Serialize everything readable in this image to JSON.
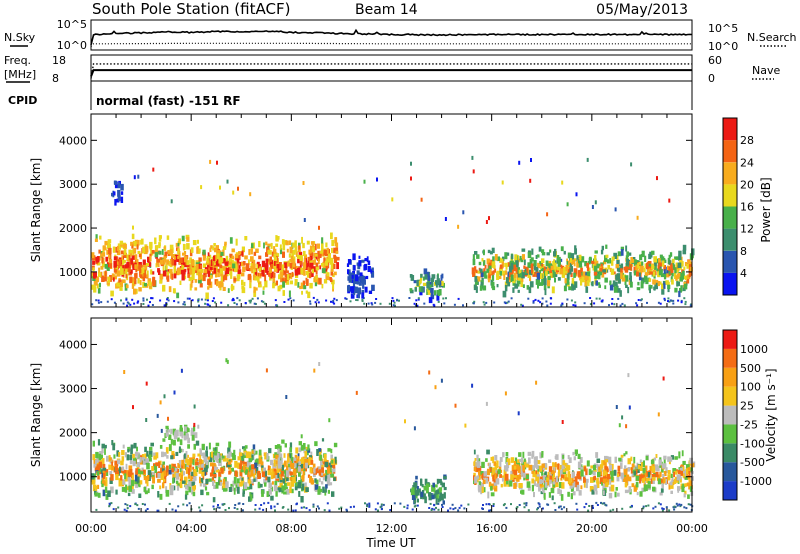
{
  "header": {
    "station": "South Pole Station (fitACF)",
    "beam": "Beam 14",
    "date": "05/May/2013"
  },
  "labels": {
    "nsky": "N.Sky",
    "nsearch": "N.Search",
    "freq_line1": "Freq.",
    "freq_line2": "[MHz]",
    "cpid": "CPID",
    "nave": "Nave",
    "mode": "normal (fast) -151 RF"
  },
  "chart_data": [
    {
      "type": "line",
      "panel": "noise",
      "left_axis": {
        "ticks": [
          "10^5",
          "10^0"
        ],
        "ylim_log10": [
          0,
          5
        ]
      },
      "right_axis": {
        "ticks": [
          "10^5",
          "10^0"
        ]
      },
      "series": [
        {
          "name": "N.Sky",
          "style": "solid",
          "x_hours": [
            0,
            0.1,
            1,
            2,
            3,
            4,
            5,
            6,
            7,
            8,
            9,
            10,
            12,
            14,
            16,
            18,
            20,
            22,
            24
          ],
          "log10_value": [
            0.5,
            2.6,
            2.8,
            2.9,
            3.1,
            3.0,
            3.2,
            3.1,
            3.3,
            3.0,
            2.9,
            2.8,
            2.6,
            2.5,
            2.6,
            2.6,
            2.6,
            2.6,
            2.6
          ]
        },
        {
          "name": "N.Search",
          "style": "dotted",
          "x_hours": [
            0,
            0.1,
            4,
            8,
            12,
            16,
            20,
            24
          ],
          "log10_value": [
            0.3,
            0.8,
            0.9,
            0.9,
            0.8,
            0.8,
            0.8,
            0.8
          ]
        }
      ]
    },
    {
      "type": "line",
      "panel": "frequency-nave",
      "left_axis": {
        "ticks": [
          "18",
          "8"
        ],
        "ylim": [
          8,
          18
        ]
      },
      "right_axis": {
        "ticks": [
          "60",
          "0"
        ],
        "ylim": [
          0,
          60
        ]
      },
      "series": [
        {
          "name": "Freq.",
          "style": "solid",
          "x_hours": [
            0,
            0.1,
            24
          ],
          "value": [
            9.5,
            12.3,
            12.3
          ]
        },
        {
          "name": "Nave",
          "style": "dotted",
          "x_hours": [
            0,
            0.1,
            24
          ],
          "value": [
            4,
            42,
            42
          ]
        }
      ]
    },
    {
      "type": "heatmap",
      "panel": "power",
      "ylabel": "Slant Range [km]",
      "yticks": [
        "1000",
        "2000",
        "3000",
        "4000"
      ],
      "ylim": [
        200,
        4600
      ],
      "xlim": [
        0,
        24
      ],
      "colorbar": {
        "label": "Power [dB]",
        "ticks": [
          "4",
          "8",
          "12",
          "16",
          "20",
          "24",
          "28"
        ],
        "colors": [
          "#0a14f0",
          "#2a56b0",
          "#3c8e6e",
          "#48b04a",
          "#e8d81e",
          "#f8ac1e",
          "#f46414",
          "#ec1a14"
        ]
      },
      "regions": [
        {
          "t0": 0.0,
          "t1": 9.8,
          "r0": 500,
          "r1": 1900,
          "level": [
            3,
            7
          ]
        },
        {
          "t0": 0.8,
          "t1": 1.2,
          "r0": 2600,
          "r1": 3200,
          "level": [
            0,
            1
          ]
        },
        {
          "t0": 10.2,
          "t1": 11.2,
          "r0": 300,
          "r1": 1500,
          "level": [
            0,
            1
          ]
        },
        {
          "t0": 12.7,
          "t1": 14.1,
          "r0": 400,
          "r1": 1100,
          "level": [
            0,
            4
          ]
        },
        {
          "t0": 15.2,
          "t1": 24.0,
          "r0": 550,
          "r1": 1650,
          "level": [
            1,
            6
          ]
        }
      ]
    },
    {
      "type": "heatmap",
      "panel": "velocity",
      "ylabel": "Slant Range [km]",
      "xlabel": "Time UT",
      "xticks": [
        "00:00",
        "04:00",
        "08:00",
        "12:00",
        "16:00",
        "20:00",
        "00:00"
      ],
      "yticks": [
        "1000",
        "2000",
        "3000",
        "4000"
      ],
      "ylim": [
        200,
        4600
      ],
      "xlim": [
        0,
        24
      ],
      "colorbar": {
        "label": "Velocity [m s⁻¹]",
        "ticks": [
          "1000",
          "500",
          "100",
          "25",
          "-25",
          "-100",
          "-500",
          "-1000"
        ],
        "colors": [
          "#1c3cc8",
          "#28589c",
          "#3a8a66",
          "#5cc040",
          "#bcbcbc",
          "#f4c41c",
          "#f8a014",
          "#f46c14",
          "#ec1a14"
        ]
      },
      "regions": [
        {
          "t0": 0.0,
          "t1": 9.8,
          "r0": 500,
          "r1": 1900,
          "level": [
            1,
            7
          ]
        },
        {
          "t0": 2.8,
          "t1": 4.2,
          "r0": 1800,
          "r1": 2200,
          "level": [
            3,
            4
          ]
        },
        {
          "t0": 12.7,
          "t1": 14.1,
          "r0": 400,
          "r1": 1100,
          "level": [
            1,
            3
          ]
        },
        {
          "t0": 15.2,
          "t1": 24.0,
          "r0": 550,
          "r1": 1650,
          "level": [
            2,
            7
          ]
        }
      ]
    }
  ]
}
